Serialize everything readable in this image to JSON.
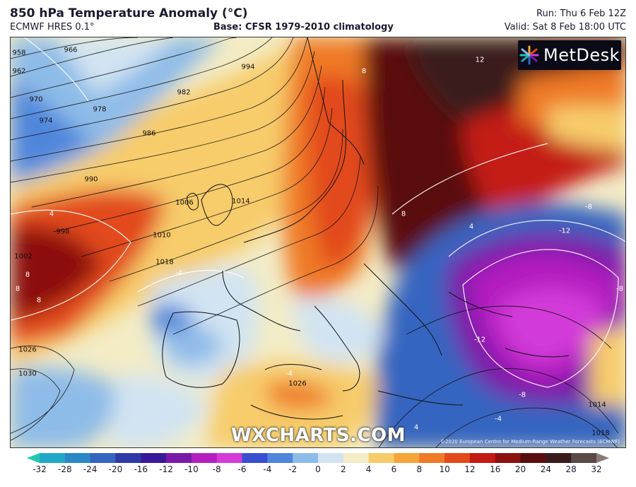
{
  "header": {
    "title": "850 hPa Temperature Anomaly (°C)",
    "model": "ECMWF HRES 0.1°",
    "base": "Base: CFSR 1979-2010 climatology",
    "run": "Run: Thu 6 Feb 12Z",
    "valid": "Valid: Sat 8 Feb 18:00 UTC"
  },
  "logo": {
    "text": "MetDesk"
  },
  "watermark": "WXCHARTS.COM",
  "copyright": "©2020 European Centre for Medium-Range Weather Forecasts (ECMWF)",
  "pressure_labels": [
    "958",
    "962",
    "966",
    "970",
    "974",
    "978",
    "982",
    "986",
    "990",
    "994",
    "998",
    "1002",
    "1006",
    "1010",
    "1014",
    "1018",
    "1026",
    "1030",
    "1026",
    "1014",
    "1018"
  ],
  "anomaly_labels": [
    "8",
    "12",
    "8",
    "4",
    "-4",
    "-8",
    "-12",
    "-12",
    "-8",
    "-4",
    "4",
    "8",
    "8",
    "-8",
    "8",
    "4",
    "-4"
  ],
  "colorbar": {
    "ticks": [
      "-32",
      "-28",
      "-24",
      "-20",
      "-16",
      "-12",
      "-10",
      "-8",
      "-6",
      "-4",
      "-2",
      "0",
      "2",
      "4",
      "6",
      "8",
      "10",
      "12",
      "16",
      "20",
      "24",
      "28",
      "32"
    ],
    "colors": [
      "#1fc8b0",
      "#22a9c8",
      "#2a87c8",
      "#3565c0",
      "#2e3aa8",
      "#3a1a9a",
      "#7a1aa8",
      "#b31fc0",
      "#d23bd8",
      "#3a4fd0",
      "#4f86dc",
      "#8ebce8",
      "#d2e4f2",
      "#f3ecc6",
      "#f7cc6a",
      "#f5a43a",
      "#ef7a28",
      "#e24a1a",
      "#c41a14",
      "#8c1010",
      "#5a0f0f",
      "#3a1c1c",
      "#5a4a4a",
      "#8a7b7b"
    ]
  }
}
